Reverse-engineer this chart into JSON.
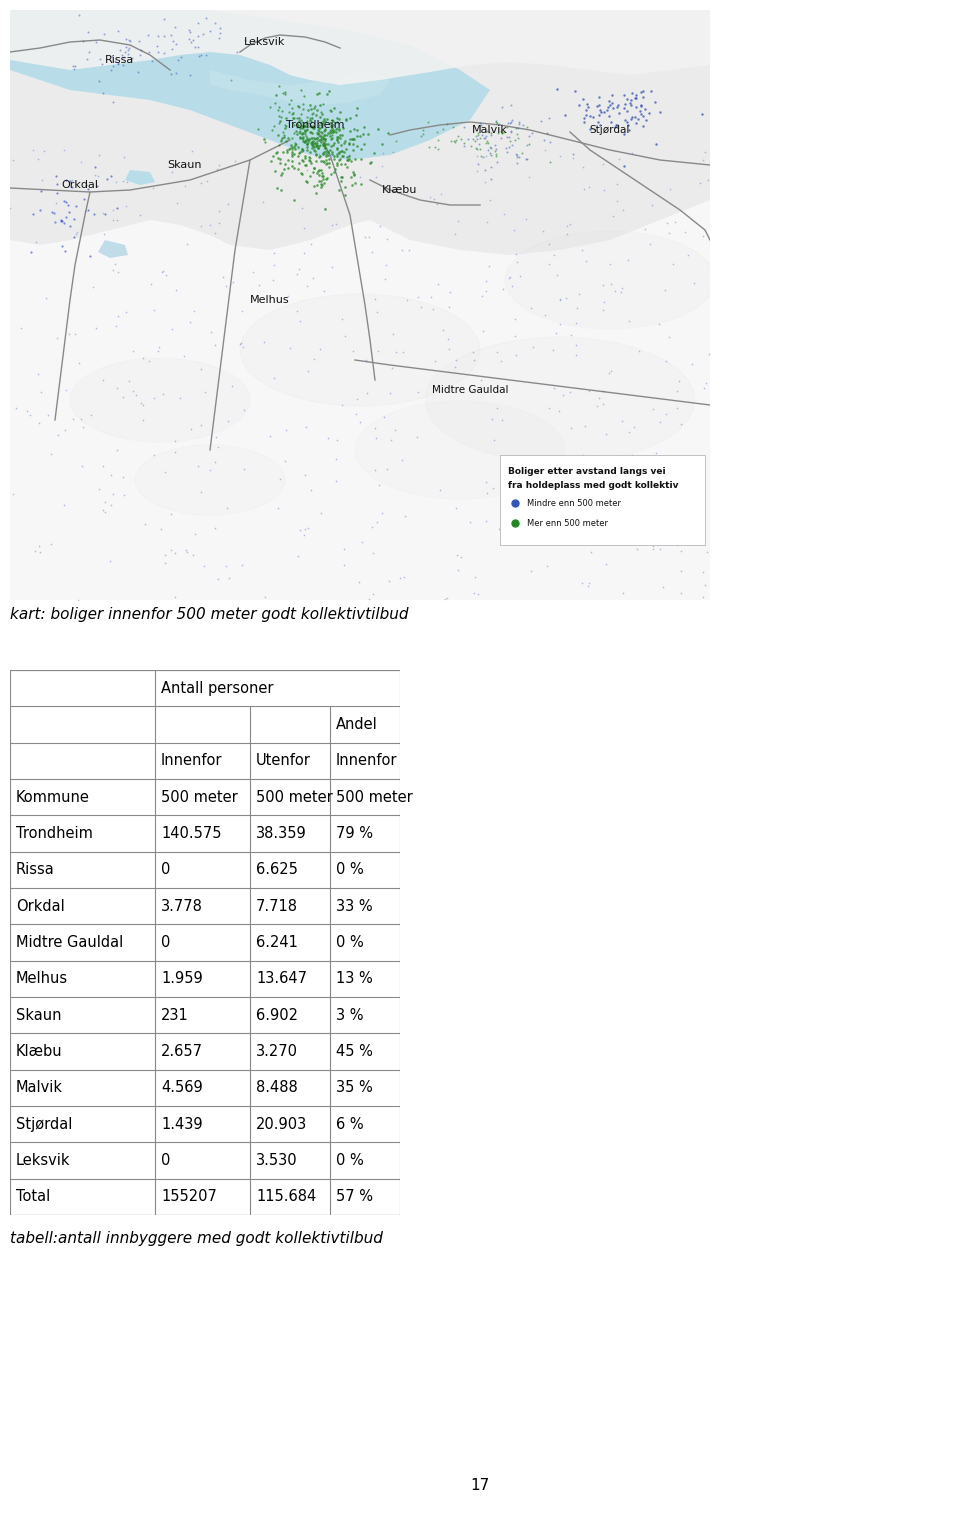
{
  "map_caption": "kart: boliger innenfor 500 meter godt kollektivtilbud",
  "table_caption": "tabell:antall innbyggere med godt kollektivtilbud",
  "page_number": "17",
  "rows": [
    [
      "Trondheim",
      "140.575",
      "38.359",
      "79 %"
    ],
    [
      "Rissa",
      "0",
      "6.625",
      "0 %"
    ],
    [
      "Orkdal",
      "3.778",
      "7.718",
      "33 %"
    ],
    [
      "Midtre Gauldal",
      "0",
      "6.241",
      "0 %"
    ],
    [
      "Melhus",
      "1.959",
      "13.647",
      "13 %"
    ],
    [
      "Skaun",
      "231",
      "6.902",
      "3 %"
    ],
    [
      "Klæbu",
      "2.657",
      "3.270",
      "45 %"
    ],
    [
      "Malvik",
      "4.569",
      "8.488",
      "35 %"
    ],
    [
      "Stjørdal",
      "1.439",
      "20.903",
      "6 %"
    ],
    [
      "Leksvik",
      "0",
      "3.530",
      "0 %"
    ],
    [
      "Total",
      "155207",
      "115.684",
      "57 %"
    ]
  ],
  "background_color": "#ffffff",
  "table_border_color": "#888888",
  "text_color": "#000000",
  "font_size_table": 10.5,
  "font_size_caption": 11,
  "font_size_header": 10.5
}
